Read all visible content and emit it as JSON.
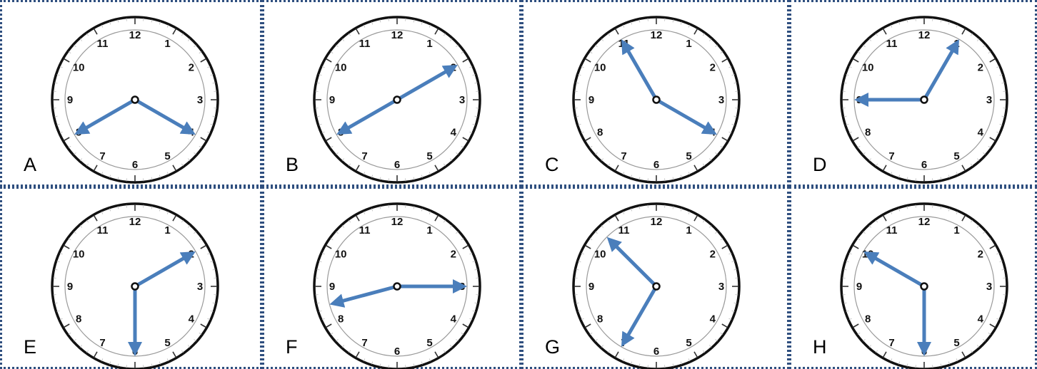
{
  "clock_numerals": [
    "12",
    "1",
    "2",
    "3",
    "4",
    "5",
    "6",
    "7",
    "8",
    "9",
    "10",
    "11"
  ],
  "hand_color": "#4a7ebb",
  "border_color": "#2f4f7f",
  "clocks": [
    {
      "letter": "A",
      "arrow_1_pointing_to": 4,
      "arrow_2_pointing_to": 8
    },
    {
      "letter": "B",
      "arrow_1_pointing_to": 2,
      "arrow_2_pointing_to": 8
    },
    {
      "letter": "C",
      "arrow_1_pointing_to": 4,
      "arrow_2_pointing_to": 11
    },
    {
      "letter": "D",
      "arrow_1_pointing_to": 1,
      "arrow_2_pointing_to": 9
    },
    {
      "letter": "E",
      "arrow_1_pointing_to": 2,
      "arrow_2_pointing_to": 6
    },
    {
      "letter": "F",
      "arrow_1_pointing_to": 3,
      "arrow_2_pointing_to": 8.5
    },
    {
      "letter": "G",
      "arrow_1_pointing_to": 7,
      "arrow_2_pointing_to": 10.5
    },
    {
      "letter": "H",
      "arrow_1_pointing_to": 6,
      "arrow_2_pointing_to": 10
    }
  ]
}
